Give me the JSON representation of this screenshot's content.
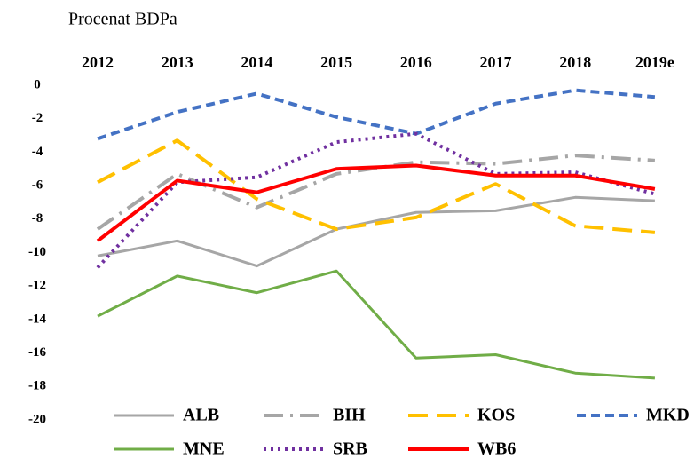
{
  "chart_data": {
    "type": "line",
    "title": "Procenat BDPa",
    "categories": [
      "2012",
      "2013",
      "2014",
      "2015",
      "2016",
      "2017",
      "2018",
      "2019e"
    ],
    "ylim": [
      0,
      -20
    ],
    "yticks": [
      0,
      -2,
      -4,
      -6,
      -8,
      -10,
      -12,
      -14,
      -16,
      -18,
      -20
    ],
    "grid": false,
    "legend": "bottom",
    "series": [
      {
        "name": "ALB",
        "color": "#a6a6a6",
        "dash": "solid",
        "width": 3,
        "values": [
          -10.2,
          -9.3,
          -10.8,
          -8.6,
          -7.6,
          -7.5,
          -6.7,
          -6.9
        ]
      },
      {
        "name": "BIH",
        "color": "#a6a6a6",
        "dash": "longdashdot",
        "width": 4,
        "values": [
          -8.6,
          -5.3,
          -7.3,
          -5.3,
          -4.6,
          -4.7,
          -4.2,
          -4.5
        ]
      },
      {
        "name": "KOS",
        "color": "#ffc000",
        "dash": "longdash",
        "width": 4,
        "values": [
          -5.8,
          -3.3,
          -6.8,
          -8.6,
          -7.9,
          -5.9,
          -8.4,
          -8.8
        ]
      },
      {
        "name": "MKD",
        "color": "#4472c4",
        "dash": "dash",
        "width": 4,
        "values": [
          -3.2,
          -1.6,
          -0.5,
          -1.9,
          -2.9,
          -1.1,
          -0.3,
          -0.7
        ]
      },
      {
        "name": "MNE",
        "color": "#70ad47",
        "dash": "solid",
        "width": 3,
        "values": [
          -13.8,
          -11.4,
          -12.4,
          -11.1,
          -16.3,
          -16.1,
          -17.2,
          -17.5
        ]
      },
      {
        "name": "SRB",
        "color": "#7030a0",
        "dash": "dot",
        "width": 4,
        "values": [
          -10.9,
          -5.8,
          -5.5,
          -3.4,
          -2.9,
          -5.3,
          -5.2,
          -6.5
        ]
      },
      {
        "name": "WB6",
        "color": "#ff0000",
        "dash": "solid",
        "width": 4,
        "values": [
          -9.3,
          -5.7,
          -6.4,
          -5.0,
          -4.8,
          -5.4,
          -5.4,
          -6.2
        ]
      }
    ]
  }
}
